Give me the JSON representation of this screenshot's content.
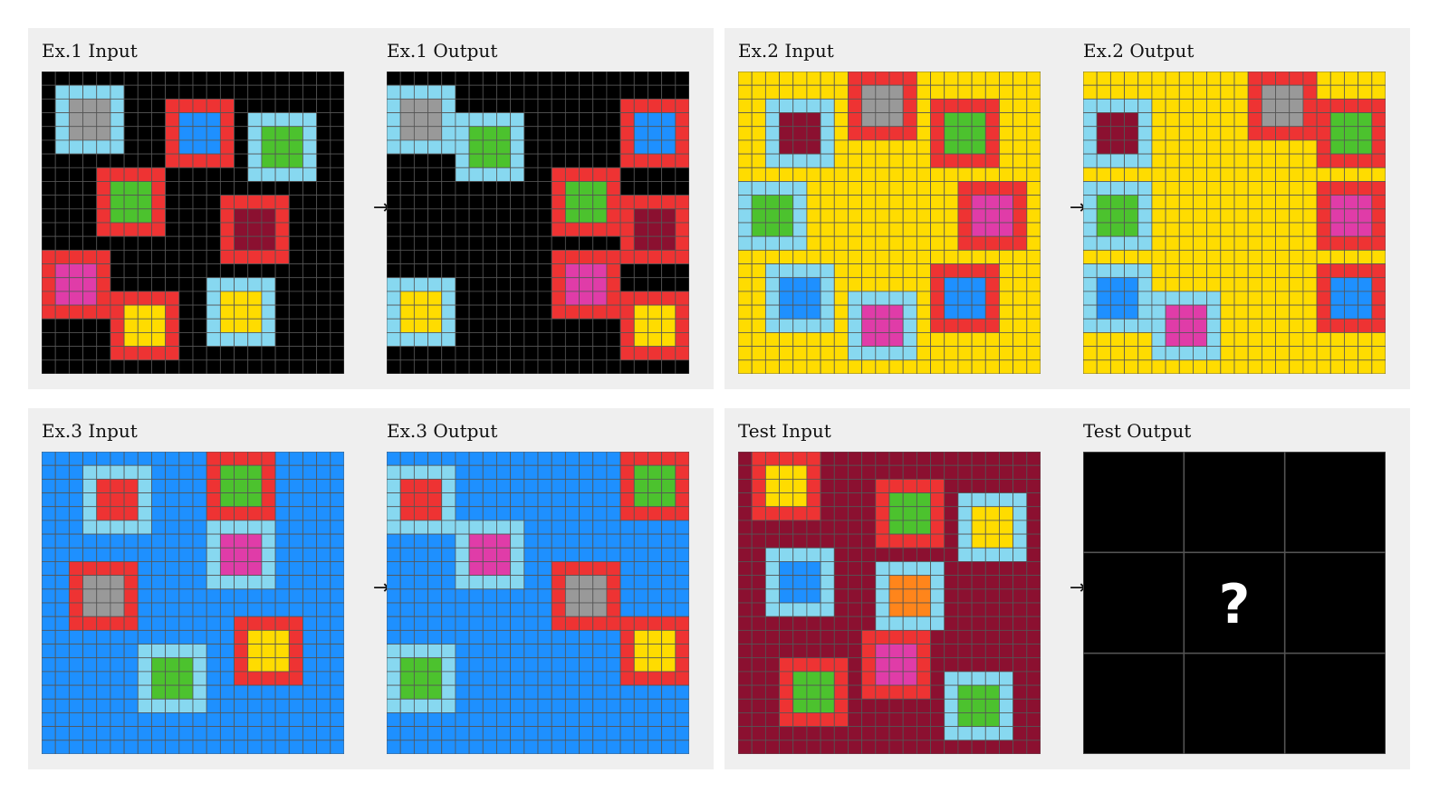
{
  "colors": {
    "black": "#000000",
    "blue": "#1e90ff",
    "red": "#ee3333",
    "green": "#4cc22e",
    "yellow": "#ffdc00",
    "gray": "#999999",
    "magenta": "#e03ca8",
    "orange": "#ff851b",
    "lightblue": "#87d8f0",
    "maroon": "#8b1030",
    "gridline": "#555555"
  },
  "arrow": "→",
  "panels": [
    {
      "input_label": "Ex.1 Input",
      "output_label": "Ex.1 Output",
      "input": {
        "size": 22,
        "bg": "black",
        "squares": [
          {
            "r": 1,
            "c": 1,
            "frame": "lightblue",
            "center": "gray"
          },
          {
            "r": 2,
            "c": 9,
            "frame": "red",
            "center": "blue"
          },
          {
            "r": 3,
            "c": 15,
            "frame": "lightblue",
            "center": "green"
          },
          {
            "r": 7,
            "c": 4,
            "frame": "red",
            "center": "green"
          },
          {
            "r": 9,
            "c": 13,
            "frame": "red",
            "center": "maroon"
          },
          {
            "r": 13,
            "c": 0,
            "frame": "red",
            "center": "magenta"
          },
          {
            "r": 15,
            "c": 12,
            "frame": "lightblue",
            "center": "yellow"
          },
          {
            "r": 16,
            "c": 5,
            "frame": "red",
            "center": "yellow"
          }
        ]
      },
      "output": {
        "size": 22,
        "bg": "black",
        "squares": [
          {
            "r": 1,
            "c": 0,
            "frame": "lightblue",
            "center": "gray"
          },
          {
            "r": 3,
            "c": 5,
            "frame": "lightblue",
            "center": "green"
          },
          {
            "r": 2,
            "c": 17,
            "frame": "red",
            "center": "blue"
          },
          {
            "r": 7,
            "c": 12,
            "frame": "red",
            "center": "green"
          },
          {
            "r": 9,
            "c": 17,
            "frame": "red",
            "center": "maroon"
          },
          {
            "r": 13,
            "c": 12,
            "frame": "red",
            "center": "magenta"
          },
          {
            "r": 15,
            "c": 0,
            "frame": "lightblue",
            "center": "yellow"
          },
          {
            "r": 16,
            "c": 17,
            "frame": "red",
            "center": "yellow"
          }
        ]
      }
    },
    {
      "input_label": "Ex.2 Input",
      "output_label": "Ex.2 Output",
      "input": {
        "size": 22,
        "bg": "yellow",
        "squares": [
          {
            "r": 0,
            "c": 8,
            "frame": "red",
            "center": "gray"
          },
          {
            "r": 2,
            "c": 2,
            "frame": "lightblue",
            "center": "maroon"
          },
          {
            "r": 2,
            "c": 14,
            "frame": "red",
            "center": "green"
          },
          {
            "r": 8,
            "c": 0,
            "frame": "lightblue",
            "center": "green"
          },
          {
            "r": 8,
            "c": 16,
            "frame": "red",
            "center": "magenta"
          },
          {
            "r": 14,
            "c": 2,
            "frame": "lightblue",
            "center": "blue"
          },
          {
            "r": 14,
            "c": 14,
            "frame": "red",
            "center": "blue"
          },
          {
            "r": 16,
            "c": 8,
            "frame": "lightblue",
            "center": "magenta"
          }
        ]
      },
      "output": {
        "size": 22,
        "bg": "yellow",
        "squares": [
          {
            "r": 0,
            "c": 12,
            "frame": "red",
            "center": "gray"
          },
          {
            "r": 2,
            "c": 0,
            "frame": "lightblue",
            "center": "maroon"
          },
          {
            "r": 2,
            "c": 17,
            "frame": "red",
            "center": "green"
          },
          {
            "r": 8,
            "c": 0,
            "frame": "lightblue",
            "center": "green"
          },
          {
            "r": 8,
            "c": 17,
            "frame": "red",
            "center": "magenta"
          },
          {
            "r": 14,
            "c": 0,
            "frame": "lightblue",
            "center": "blue"
          },
          {
            "r": 14,
            "c": 17,
            "frame": "red",
            "center": "blue"
          },
          {
            "r": 16,
            "c": 5,
            "frame": "lightblue",
            "center": "magenta"
          }
        ]
      }
    },
    {
      "input_label": "Ex.3 Input",
      "output_label": "Ex.3 Output",
      "input": {
        "size": 22,
        "bg": "blue",
        "squares": [
          {
            "r": 1,
            "c": 3,
            "frame": "lightblue",
            "center": "red"
          },
          {
            "r": 0,
            "c": 12,
            "frame": "red",
            "center": "green"
          },
          {
            "r": 5,
            "c": 12,
            "frame": "lightblue",
            "center": "magenta"
          },
          {
            "r": 8,
            "c": 2,
            "frame": "red",
            "center": "gray"
          },
          {
            "r": 12,
            "c": 14,
            "frame": "red",
            "center": "yellow"
          },
          {
            "r": 14,
            "c": 7,
            "frame": "lightblue",
            "center": "green"
          }
        ]
      },
      "output": {
        "size": 22,
        "bg": "blue",
        "squares": [
          {
            "r": 1,
            "c": 0,
            "frame": "lightblue",
            "center": "red"
          },
          {
            "r": 0,
            "c": 17,
            "frame": "red",
            "center": "green"
          },
          {
            "r": 5,
            "c": 5,
            "frame": "lightblue",
            "center": "magenta"
          },
          {
            "r": 8,
            "c": 12,
            "frame": "red",
            "center": "gray"
          },
          {
            "r": 12,
            "c": 17,
            "frame": "red",
            "center": "yellow"
          },
          {
            "r": 14,
            "c": 0,
            "frame": "lightblue",
            "center": "green"
          }
        ]
      }
    },
    {
      "input_label": "Test Input",
      "output_label": "Test Output",
      "input": {
        "size": 22,
        "bg": "maroon",
        "squares": [
          {
            "r": 0,
            "c": 1,
            "frame": "red",
            "center": "yellow"
          },
          {
            "r": 2,
            "c": 10,
            "frame": "red",
            "center": "green"
          },
          {
            "r": 3,
            "c": 16,
            "frame": "lightblue",
            "center": "yellow"
          },
          {
            "r": 7,
            "c": 2,
            "frame": "lightblue",
            "center": "blue"
          },
          {
            "r": 8,
            "c": 10,
            "frame": "lightblue",
            "center": "orange"
          },
          {
            "r": 13,
            "c": 9,
            "frame": "red",
            "center": "magenta"
          },
          {
            "r": 15,
            "c": 3,
            "frame": "red",
            "center": "green"
          },
          {
            "r": 16,
            "c": 15,
            "frame": "lightblue",
            "center": "green"
          }
        ]
      },
      "output_unknown": {
        "size": 3,
        "mark": "?"
      }
    }
  ]
}
